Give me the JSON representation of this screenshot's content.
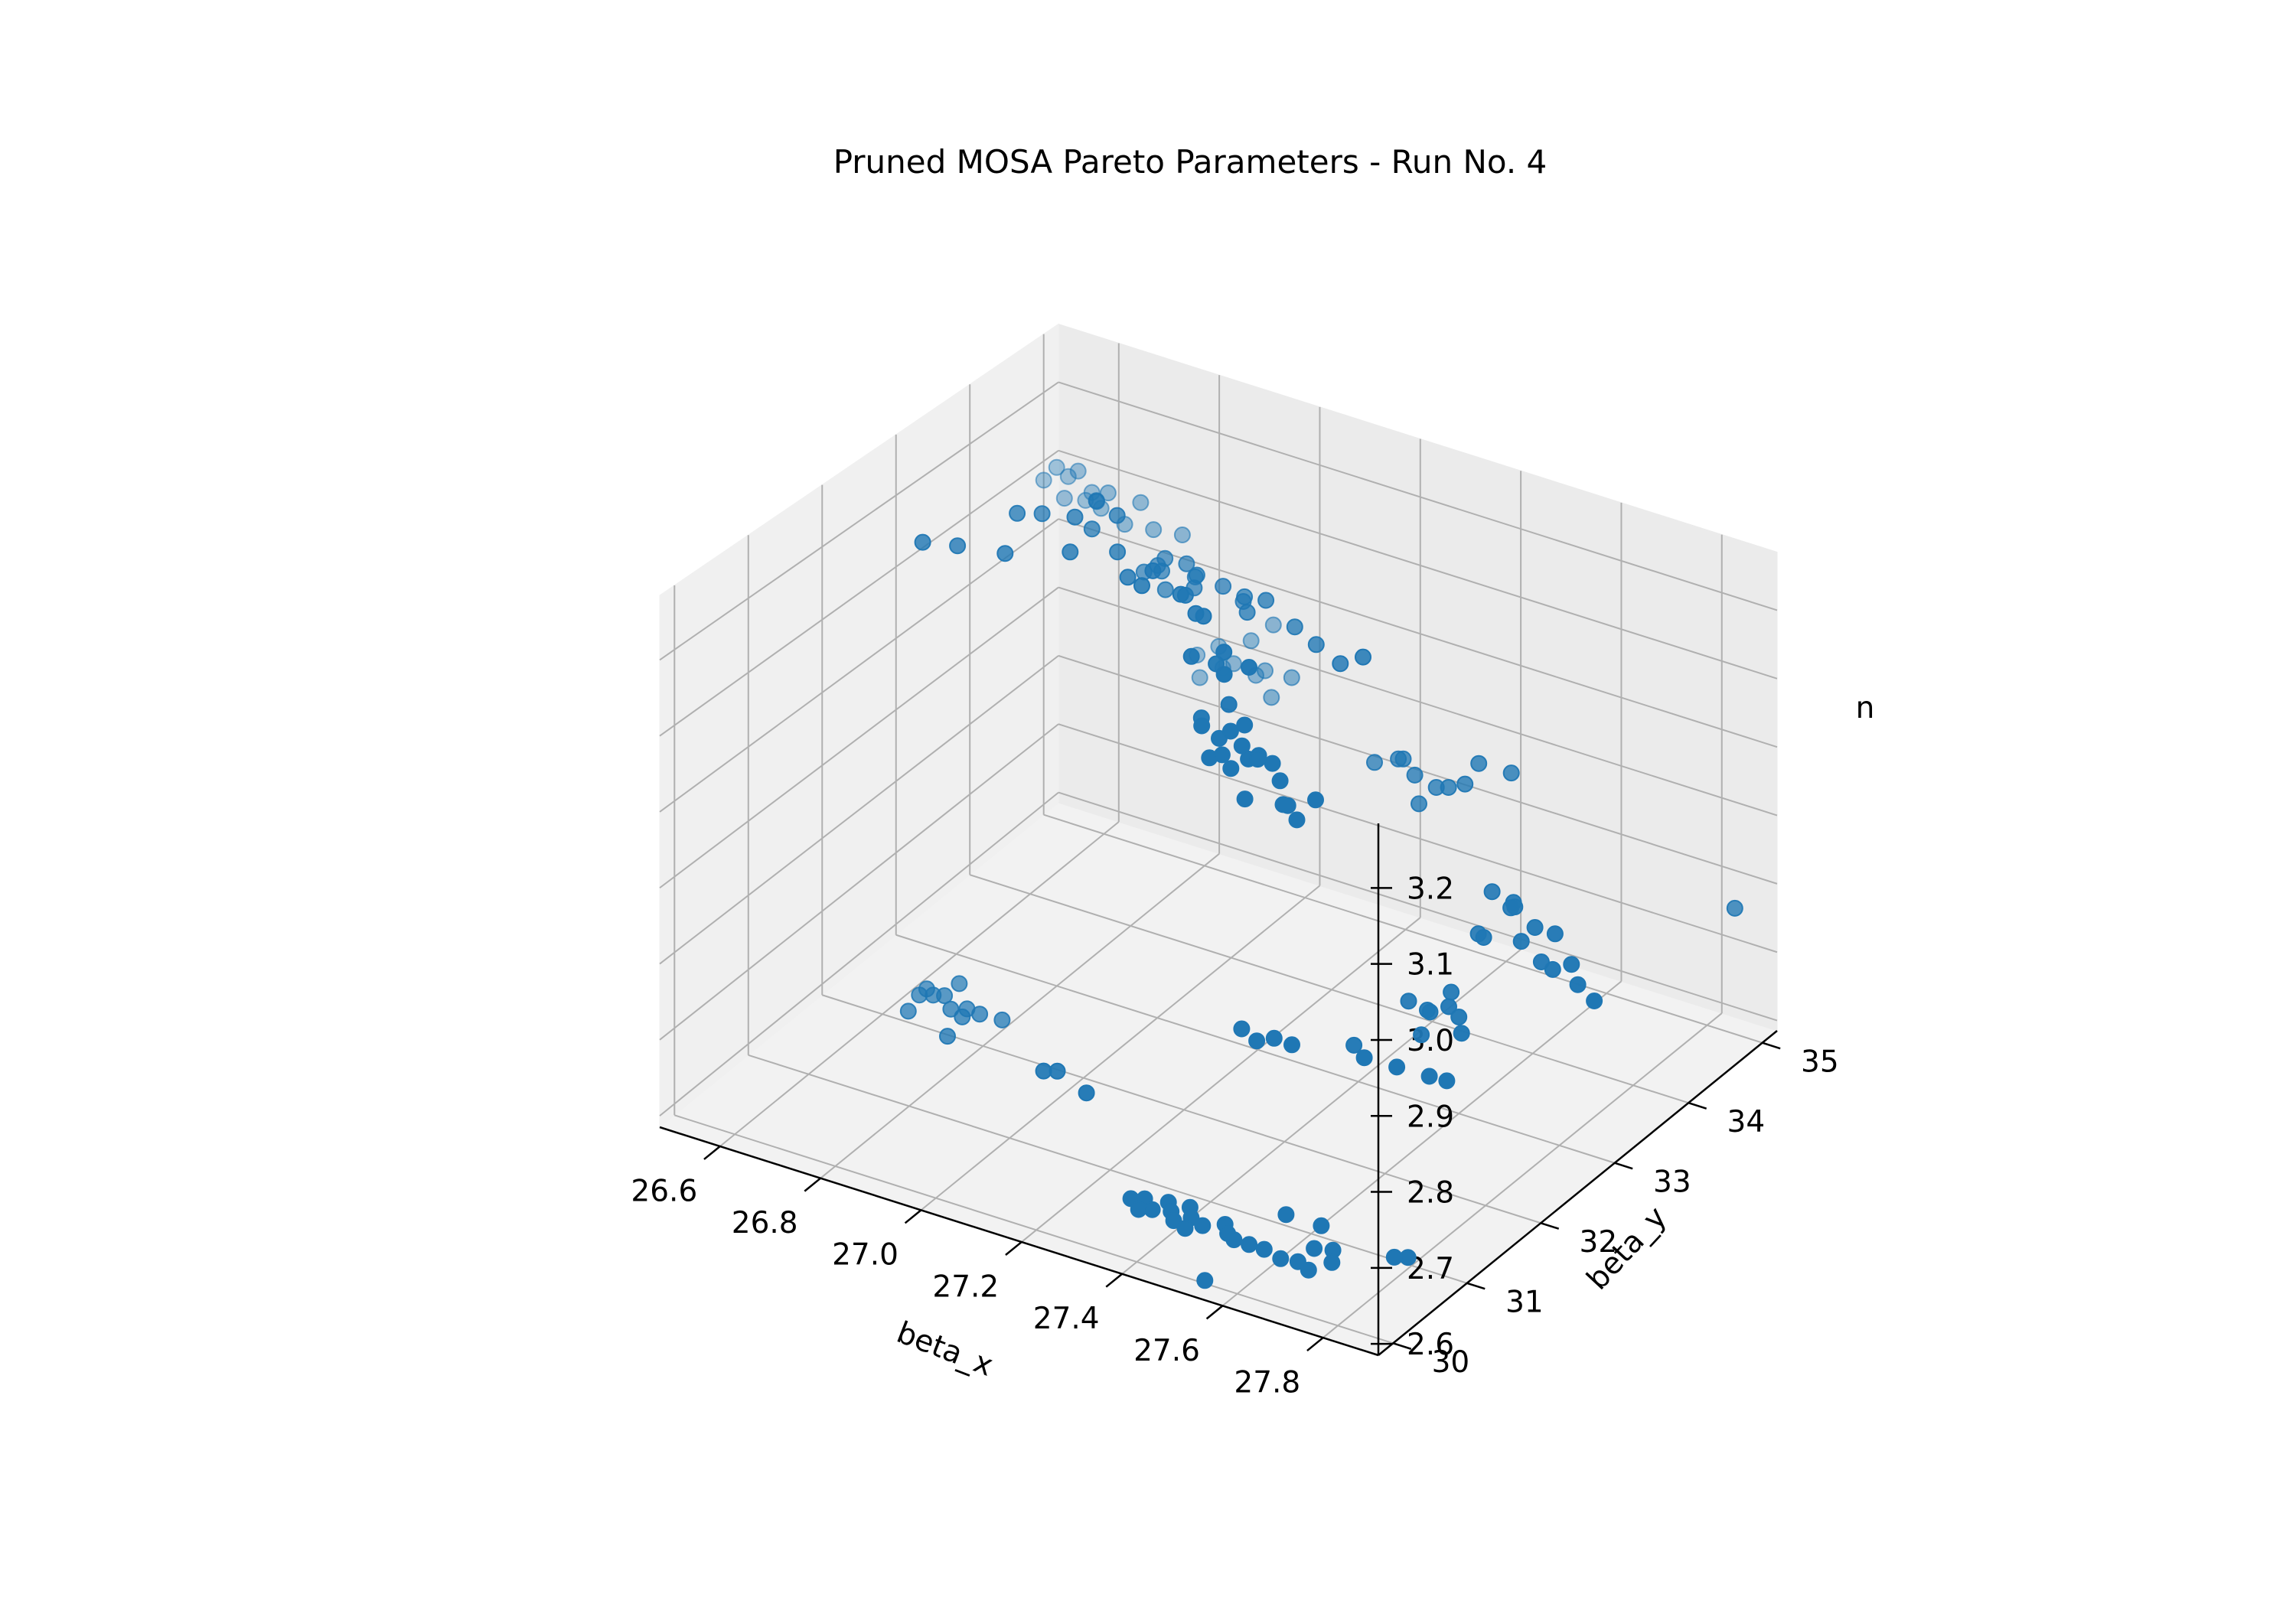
{
  "chart_data": {
    "type": "scatter3d",
    "title": "Pruned MOSA Pareto Parameters - Run No. 4",
    "xlabel": "beta_x",
    "ylabel": "beta_y",
    "zlabel": "n",
    "xlim": [
      26.48,
      27.91
    ],
    "ylim": [
      29.8,
      35.2
    ],
    "zlim": [
      2.585,
      3.285
    ],
    "xticks": [
      26.6,
      26.8,
      27.0,
      27.2,
      27.4,
      27.6,
      27.8
    ],
    "yticks": [
      30,
      31,
      32,
      33,
      34,
      35
    ],
    "zticks": [
      2.6,
      2.7,
      2.8,
      2.9,
      3.0,
      3.1,
      3.2
    ],
    "xtick_labels": [
      "26.6",
      "26.8",
      "27.0",
      "27.2",
      "27.4",
      "27.6",
      "27.8"
    ],
    "ytick_labels": [
      "30",
      "31",
      "32",
      "33",
      "34",
      "35"
    ],
    "ztick_labels": [
      "2.6",
      "2.7",
      "2.8",
      "2.9",
      "3.0",
      "3.1",
      "3.2"
    ],
    "grid": true,
    "legend": "none",
    "marker_color": "#1f77b4",
    "pane_color": "#f2f2f2",
    "grid_color": "#b0b0b0",
    "points": [
      [
        26.55,
        34.7,
        3.13
      ],
      [
        26.57,
        34.72,
        3.12
      ],
      [
        26.6,
        34.65,
        3.14
      ],
      [
        26.62,
        34.7,
        3.11
      ],
      [
        26.58,
        34.6,
        3.1
      ],
      [
        26.65,
        34.62,
        3.1
      ],
      [
        26.7,
        34.6,
        3.09
      ],
      [
        26.72,
        34.68,
        3.12
      ],
      [
        26.6,
        34.75,
        3.09
      ],
      [
        26.67,
        34.58,
        3.13
      ],
      [
        26.75,
        34.65,
        3.09
      ],
      [
        26.8,
        34.7,
        3.09
      ],
      [
        26.53,
        34.66,
        3.11
      ],
      [
        26.9,
        33.5,
        3.15
      ],
      [
        26.92,
        33.55,
        3.16
      ],
      [
        26.95,
        33.45,
        3.14
      ],
      [
        27.0,
        33.5,
        3.15
      ],
      [
        26.97,
        33.6,
        3.17
      ],
      [
        27.05,
        33.55,
        3.16
      ],
      [
        27.1,
        33.5,
        3.16
      ],
      [
        27.02,
        33.4,
        3.18
      ],
      [
        26.98,
        33.65,
        3.15
      ],
      [
        27.15,
        33.45,
        3.17
      ],
      [
        27.08,
        33.62,
        3.14
      ],
      [
        26.93,
        33.58,
        3.17
      ],
      [
        27.12,
        33.4,
        3.15
      ],
      [
        27.2,
        33.5,
        3.14
      ],
      [
        27.25,
        33.45,
        3.13
      ],
      [
        27.32,
        33.3,
        3.13
      ],
      [
        27.38,
        33.2,
        3.16
      ],
      [
        26.95,
        33.4,
        3.17
      ],
      [
        26.68,
        32.0,
        3.25
      ],
      [
        26.72,
        32.2,
        3.24
      ],
      [
        26.8,
        32.8,
        3.26
      ],
      [
        26.78,
        32.6,
        3.27
      ],
      [
        26.85,
        33.2,
        3.26
      ],
      [
        26.9,
        32.5,
        3.25
      ],
      [
        26.87,
        33.0,
        3.24
      ],
      [
        26.82,
        33.4,
        3.24
      ],
      [
        26.88,
        32.7,
        3.28
      ],
      [
        26.8,
        32.3,
        3.24
      ],
      [
        26.92,
        33.0,
        3.27
      ],
      [
        26.95,
        32.8,
        3.24
      ],
      [
        27.0,
        32.6,
        3.23
      ],
      [
        27.05,
        32.6,
        3.25
      ],
      [
        27.12,
        32.5,
        3.24
      ],
      [
        27.18,
        32.4,
        3.23
      ],
      [
        27.1,
        32.7,
        3.22
      ],
      [
        27.25,
        32.2,
        3.21
      ],
      [
        27.28,
        32.0,
        3.2
      ],
      [
        27.2,
        32.1,
        3.2
      ],
      [
        27.22,
        32.3,
        3.18
      ],
      [
        27.3,
        32.2,
        3.2
      ],
      [
        27.15,
        32.5,
        3.22
      ],
      [
        27.05,
        32.45,
        3.24
      ],
      [
        27.25,
        31.9,
        3.13
      ],
      [
        27.27,
        32.0,
        3.11
      ],
      [
        27.3,
        31.95,
        3.13
      ],
      [
        27.33,
        31.9,
        3.12
      ],
      [
        27.28,
        31.8,
        3.1
      ],
      [
        27.22,
        32.1,
        3.12
      ],
      [
        27.35,
        31.85,
        3.11
      ],
      [
        27.32,
        31.7,
        3.12
      ],
      [
        27.26,
        32.2,
        3.14
      ],
      [
        27.33,
        31.75,
        3.1
      ],
      [
        27.38,
        31.6,
        3.08
      ],
      [
        27.42,
        31.7,
        3.13
      ],
      [
        27.4,
        31.65,
        3.14
      ],
      [
        27.45,
        31.6,
        3.12
      ],
      [
        27.48,
        31.5,
        3.1
      ],
      [
        27.35,
        31.8,
        3.16
      ],
      [
        27.5,
        31.3,
        3.12
      ],
      [
        27.55,
        31.4,
        3.13
      ],
      [
        27.42,
        31.5,
        3.15
      ],
      [
        27.52,
        31.35,
        3.1
      ],
      [
        26.8,
        34.9,
        2.9
      ],
      [
        26.84,
        34.92,
        2.92
      ],
      [
        26.88,
        34.85,
        2.91
      ],
      [
        26.92,
        34.88,
        2.9
      ],
      [
        26.95,
        34.8,
        2.92
      ],
      [
        26.9,
        34.95,
        2.94
      ],
      [
        26.82,
        34.8,
        2.88
      ],
      [
        26.97,
        34.75,
        2.89
      ],
      [
        27.0,
        34.82,
        2.92
      ],
      [
        26.94,
        34.98,
        2.97
      ],
      [
        26.86,
        34.84,
        2.9
      ],
      [
        27.3,
        33.9,
        2.94
      ],
      [
        27.34,
        33.95,
        2.95
      ],
      [
        27.38,
        33.9,
        2.94
      ],
      [
        27.42,
        33.92,
        2.93
      ],
      [
        27.45,
        33.88,
        2.94
      ],
      [
        27.48,
        33.9,
        2.95
      ],
      [
        27.5,
        33.95,
        2.98
      ],
      [
        27.4,
        33.82,
        2.91
      ],
      [
        27.55,
        34.05,
        2.97
      ],
      [
        27.36,
        33.88,
        2.96
      ],
      [
        27.6,
        33.45,
        2.86
      ],
      [
        27.63,
        33.5,
        2.84
      ],
      [
        27.65,
        33.4,
        2.86
      ],
      [
        27.7,
        33.35,
        2.84
      ],
      [
        27.68,
        33.3,
        2.82
      ],
      [
        27.72,
        33.3,
        2.8
      ],
      [
        27.75,
        33.25,
        2.8
      ],
      [
        27.62,
        33.2,
        2.82
      ],
      [
        27.58,
        33.4,
        2.8
      ],
      [
        27.78,
        33.3,
        2.81
      ],
      [
        27.8,
        33.25,
        2.79
      ],
      [
        27.84,
        33.2,
        2.78
      ],
      [
        27.66,
        33.35,
        2.86
      ],
      [
        27.74,
        33.35,
        2.84
      ],
      [
        27.5,
        33.0,
        2.72
      ],
      [
        27.53,
        33.05,
        2.71
      ],
      [
        27.55,
        32.95,
        2.72
      ],
      [
        27.58,
        33.0,
        2.73
      ],
      [
        27.57,
        33.1,
        2.74
      ],
      [
        27.6,
        33.0,
        2.72
      ],
      [
        27.62,
        32.9,
        2.71
      ],
      [
        27.54,
        32.9,
        2.69
      ],
      [
        27.3,
        32.1,
        2.71
      ],
      [
        27.33,
        32.1,
        2.7
      ],
      [
        27.35,
        32.2,
        2.7
      ],
      [
        27.4,
        32.1,
        2.71
      ],
      [
        27.45,
        32.6,
        2.68
      ],
      [
        27.55,
        32.5,
        2.68
      ],
      [
        27.6,
        32.6,
        2.67
      ],
      [
        27.62,
        32.7,
        2.66
      ],
      [
        27.5,
        32.4,
        2.69
      ],
      [
        26.6,
        32.5,
        2.57
      ],
      [
        26.62,
        32.55,
        2.57
      ],
      [
        26.65,
        32.5,
        2.58
      ],
      [
        26.68,
        32.6,
        2.56
      ],
      [
        26.7,
        32.4,
        2.57
      ],
      [
        26.65,
        32.7,
        2.58
      ],
      [
        26.6,
        32.35,
        2.56
      ],
      [
        26.72,
        32.5,
        2.57
      ],
      [
        26.75,
        32.6,
        2.56
      ],
      [
        26.7,
        32.2,
        2.56
      ],
      [
        26.6,
        32.6,
        2.57
      ],
      [
        26.67,
        32.45,
        2.57
      ],
      [
        26.95,
        31.8,
        2.6
      ],
      [
        26.97,
        31.85,
        2.6
      ],
      [
        27.05,
        31.7,
        2.6
      ],
      [
        27.3,
        30.6,
        2.6
      ],
      [
        27.32,
        30.65,
        2.6
      ],
      [
        27.35,
        30.55,
        2.6
      ],
      [
        27.38,
        30.6,
        2.6
      ],
      [
        27.4,
        30.5,
        2.6
      ],
      [
        27.42,
        30.6,
        2.6
      ],
      [
        27.45,
        30.55,
        2.6
      ],
      [
        27.33,
        30.5,
        2.6
      ],
      [
        27.48,
        30.65,
        2.6
      ],
      [
        27.36,
        30.7,
        2.6
      ],
      [
        27.43,
        30.45,
        2.6
      ],
      [
        27.4,
        30.72,
        2.6
      ],
      [
        27.5,
        30.55,
        2.6
      ],
      [
        27.52,
        30.5,
        2.6
      ],
      [
        27.55,
        31.0,
        2.6
      ],
      [
        27.62,
        31.0,
        2.6
      ],
      [
        27.55,
        30.5,
        2.6
      ],
      [
        27.58,
        30.5,
        2.6
      ],
      [
        27.62,
        30.45,
        2.6
      ],
      [
        27.65,
        30.48,
        2.6
      ],
      [
        27.68,
        30.42,
        2.6
      ],
      [
        27.65,
        30.7,
        2.6
      ],
      [
        27.68,
        30.75,
        2.6
      ],
      [
        27.7,
        30.6,
        2.6
      ],
      [
        27.78,
        30.9,
        2.6
      ],
      [
        27.8,
        30.95,
        2.6
      ],
      [
        27.55,
        29.9,
        2.6
      ],
      [
        27.87,
        34.9,
        2.78
      ]
    ]
  }
}
